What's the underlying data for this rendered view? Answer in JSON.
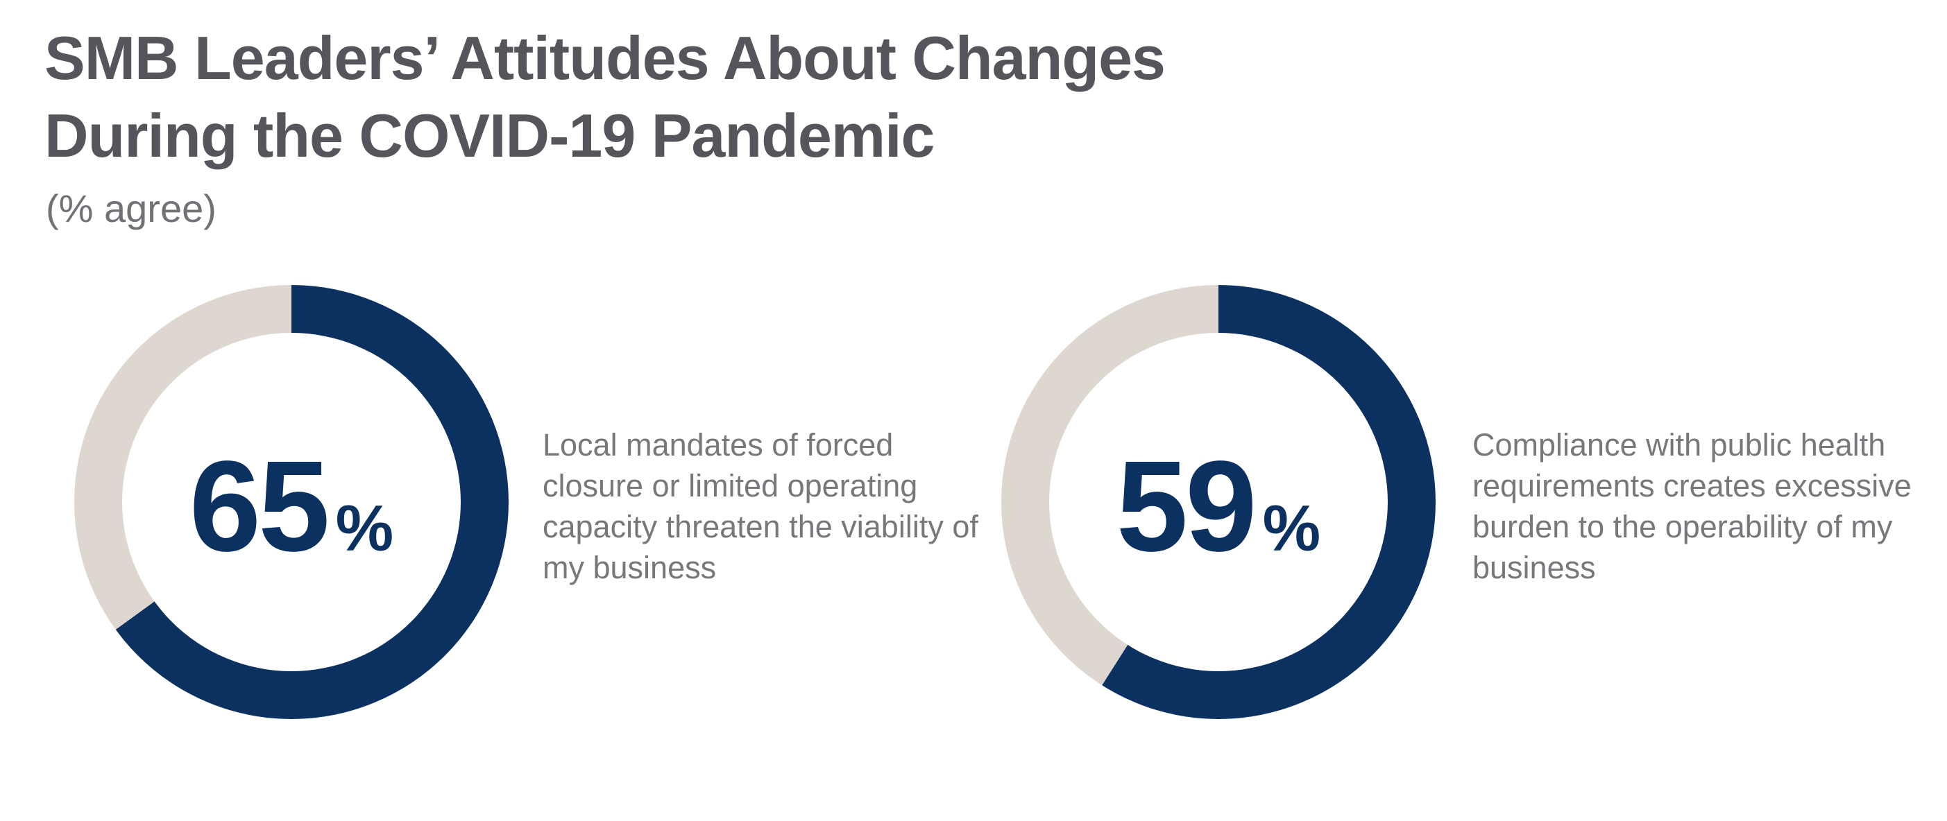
{
  "page": {
    "title_line1": "SMB Leaders’ Attitudes About Changes",
    "title_line2": "During the COVID-19 Pandemic",
    "subtitle": "(% agree)"
  },
  "chart_data": {
    "type": "pie",
    "variant": "donut-pair",
    "title": "SMB Leaders’ Attitudes About Changes During the COVID-19 Pandemic",
    "subtitle": "(% agree)",
    "unit": "%",
    "value_range": [
      0,
      100
    ],
    "arc_start": "12-o'clock, clockwise",
    "items": [
      {
        "value": 65,
        "label": "Local mandates of forced closure or limited operating capacity threaten the viability of my business"
      },
      {
        "value": 59,
        "label": "Compliance with public health requirements creates excessive burden to the operability of my business"
      }
    ],
    "colors": {
      "agree_fill": "#0b3161",
      "remainder_track": "#ded7d0",
      "title_text": "#55565b",
      "subtitle_text": "#717277",
      "body_text": "#77787c"
    }
  }
}
